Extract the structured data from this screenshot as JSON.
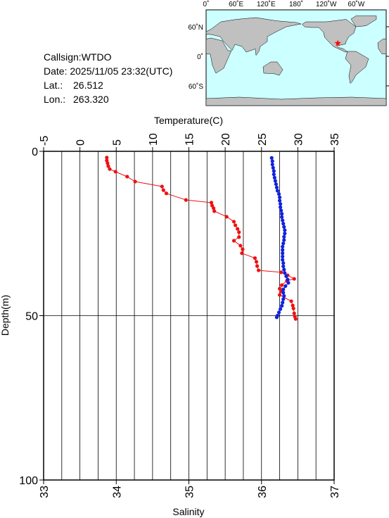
{
  "info": {
    "callsign": "Callsign:WTDO",
    "date": "Date:  2025/11/05 23:32(UTC)",
    "lat_label": "Lat.:",
    "lat": "26.512",
    "lon_label": "Lon.:",
    "lon": "263.320"
  },
  "map": {
    "lon_labels": [
      "0˚",
      "60˚E",
      "120˚E",
      "180˚",
      "120˚W",
      "60˚W"
    ],
    "lat_labels": [
      "60˚N",
      "0˚",
      "60˚S"
    ],
    "marker_color": "#ff0000"
  },
  "chart_data": {
    "type": "line",
    "xlabel": "Temperature(C)",
    "x2label": "Salinity",
    "ylabel": "Depth(m)",
    "xlim": [
      -5,
      35
    ],
    "xticks": [
      -5,
      0,
      5,
      10,
      15,
      20,
      25,
      30,
      35
    ],
    "xgrid": [
      -2.5,
      0,
      2.5,
      5,
      7.5,
      10,
      12.5,
      15,
      17.5,
      20,
      22.5,
      25,
      27.5,
      30,
      32.5
    ],
    "x2lim": [
      33,
      37
    ],
    "x2ticks": [
      33,
      34,
      35,
      36,
      37
    ],
    "ylim": [
      0,
      100
    ],
    "yticks": [
      0,
      50,
      100
    ],
    "y_inverted": true,
    "ygrid": [
      50
    ],
    "series": [
      {
        "axis": "x",
        "color": "#ee1111",
        "x": [
          3.7,
          3.7,
          3.8,
          3.9,
          4.1,
          4.9,
          6.5,
          7.6,
          11.3,
          11.5,
          11.9,
          14.6,
          18.1,
          18.2,
          18.4,
          18.5,
          20.2,
          21.2,
          21.4,
          21.7,
          21.9,
          21.9,
          21.2,
          22.1,
          22.4,
          22.3,
          24.1,
          24.3,
          24.4,
          24.6,
          27.7,
          28.6,
          29.5,
          28.5,
          27.8,
          27.5,
          27.7,
          27.5,
          29.1,
          29.3,
          29.4,
          29.5,
          29.6,
          29.7
        ],
        "y": [
          1.9,
          2.8,
          3.6,
          4.5,
          5.4,
          6.2,
          7.7,
          9.2,
          10.7,
          11.8,
          12.8,
          14.8,
          15.6,
          16.5,
          17.3,
          18.2,
          19.9,
          21.4,
          22.5,
          23.6,
          24.6,
          26.1,
          27.2,
          28.7,
          29.8,
          31.0,
          32.5,
          33.6,
          34.9,
          36.2,
          36.8,
          37.7,
          38.8,
          39.4,
          40.7,
          41.8,
          42.6,
          43.7,
          45.6,
          46.9,
          47.8,
          49.3,
          50.3,
          51.0
        ]
      },
      {
        "axis": "x2",
        "color": "#1122dd",
        "x": [
          36.14,
          36.15,
          36.15,
          36.16,
          36.17,
          36.17,
          36.18,
          36.19,
          36.2,
          36.21,
          36.22,
          36.24,
          36.25,
          36.25,
          36.26,
          36.26,
          36.27,
          36.28,
          36.28,
          36.29,
          36.3,
          36.31,
          36.32,
          36.32,
          36.31,
          36.31,
          36.3,
          36.29,
          36.29,
          36.29,
          36.29,
          36.29,
          36.3,
          36.3,
          36.31,
          36.32,
          36.34,
          36.36,
          36.37,
          36.33,
          36.3,
          36.3,
          36.31,
          36.3,
          36.29,
          36.28,
          36.26,
          36.24,
          36.22,
          36.21
        ],
        "y": [
          2,
          3,
          4,
          5,
          6,
          7,
          8,
          9,
          10,
          11,
          12,
          13,
          14,
          15,
          16,
          17,
          18,
          19,
          20,
          21,
          22,
          23,
          24,
          25,
          26,
          27,
          28,
          29,
          30,
          31,
          32,
          33,
          34,
          35,
          36,
          37,
          38,
          39,
          40,
          41,
          42,
          43,
          44,
          45,
          46,
          47,
          48,
          49,
          50,
          50.5
        ]
      }
    ]
  }
}
